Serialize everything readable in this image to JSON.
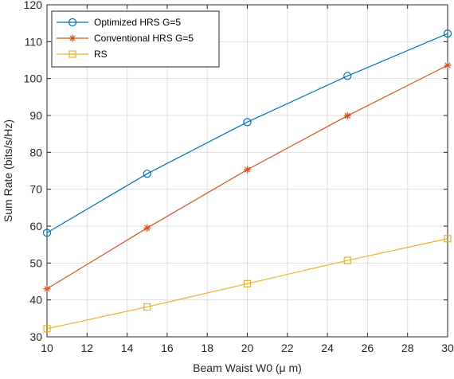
{
  "chart_data": {
    "type": "line",
    "xlabel": "Beam Waist W0 (μ m)",
    "ylabel": "Sum Rate (bits/s/Hz)",
    "xlim": [
      10,
      30
    ],
    "ylim": [
      30,
      120
    ],
    "xticks": [
      10,
      12,
      14,
      16,
      18,
      20,
      22,
      24,
      26,
      28,
      30
    ],
    "yticks": [
      30,
      40,
      50,
      60,
      70,
      80,
      90,
      100,
      110,
      120
    ],
    "grid": true,
    "legend_position": "top-left",
    "x": [
      10,
      15,
      20,
      25,
      30
    ],
    "series": [
      {
        "name": "Optimized HRS G=5",
        "color": "#0072BD",
        "marker": "circle",
        "values": [
          58.2,
          74.2,
          88.2,
          100.7,
          112.2
        ]
      },
      {
        "name": "Conventional HRS G=5",
        "color": "#D95319",
        "marker": "asterisk",
        "values": [
          43.0,
          59.5,
          75.3,
          89.9,
          103.6
        ]
      },
      {
        "name": "RS",
        "color": "#EDB120",
        "marker": "square",
        "values": [
          32.2,
          38.1,
          44.4,
          50.7,
          56.6
        ]
      }
    ]
  }
}
